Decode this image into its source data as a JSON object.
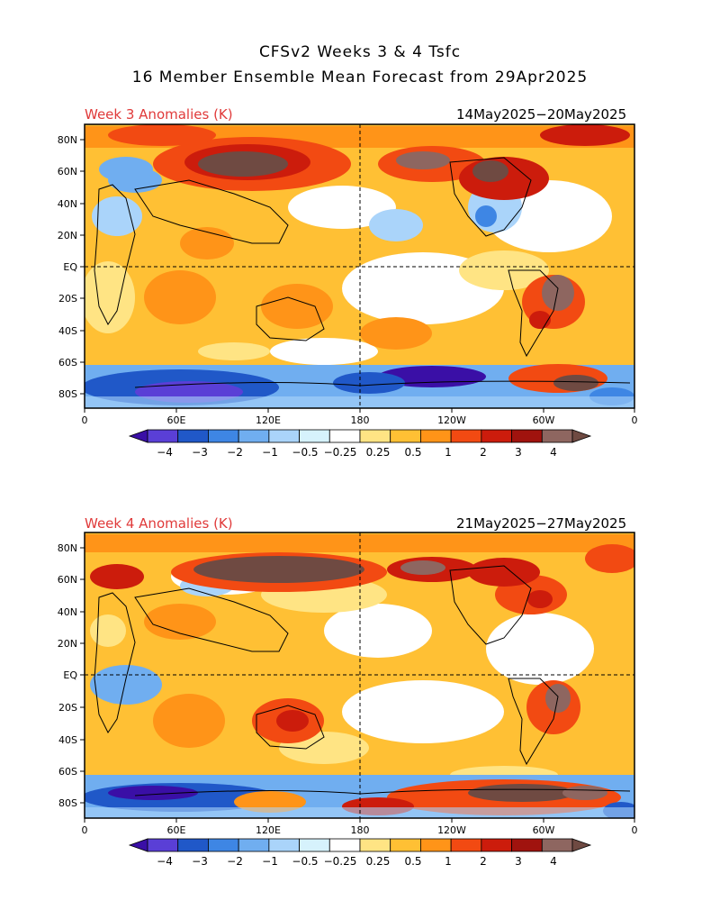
{
  "header": {
    "title_line1": "CFSv2 Weeks 3 & 4 Tsfc",
    "title_line2": "16 Member Ensemble Mean Forecast from 29Apr2025"
  },
  "panels": [
    {
      "label": "Week 3 Anomalies (K)",
      "dates": "14May2025−20May2025"
    },
    {
      "label": "Week 4 Anomalies (K)",
      "dates": "21May2025−27May2025"
    }
  ],
  "axes": {
    "lat_labels": [
      "80N",
      "60N",
      "40N",
      "20N",
      "EQ",
      "20S",
      "40S",
      "60S",
      "80S"
    ],
    "lon_labels": [
      "0",
      "60E",
      "120E",
      "180",
      "120W",
      "60W",
      "0"
    ]
  },
  "colorbar": {
    "labels": [
      "−4",
      "−3",
      "−2",
      "−1",
      "−0.5",
      "−0.25",
      "0.25",
      "0.5",
      "1",
      "2",
      "3",
      "4"
    ],
    "colors": [
      "#3a0fa6",
      "#5a3fd6",
      "#2058c8",
      "#3e86e4",
      "#70aef0",
      "#aad4fa",
      "#d6f2fc",
      "#ffffff",
      "#ffe484",
      "#ffc034",
      "#ff9418",
      "#f24a12",
      "#cc1c0c",
      "#a0130e",
      "#8e6660",
      "#6f4a42"
    ]
  },
  "colors": {
    "title_red": "#e03a3a",
    "ocean_white": "#ffffff",
    "warm_base": "#ffc034"
  }
}
